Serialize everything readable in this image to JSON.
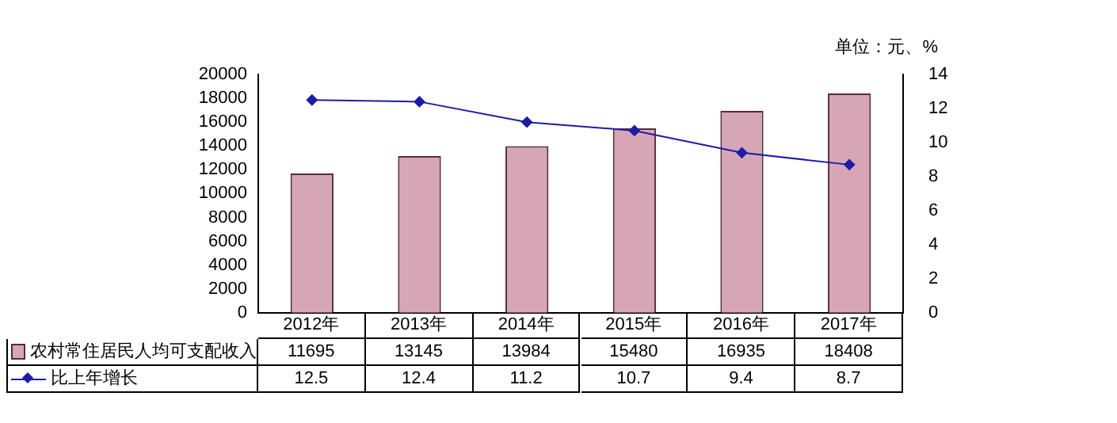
{
  "chart_data": {
    "type": "bar",
    "categories": [
      "2012年",
      "2013年",
      "2014年",
      "2015年",
      "2016年",
      "2017年"
    ],
    "series": [
      {
        "name": "农村常住居民人均可支配收入",
        "color": "#d7a6b6",
        "values": [
          11695,
          13145,
          13984,
          15480,
          16935,
          18408
        ]
      },
      {
        "name": "比上年增长",
        "type": "line",
        "axis": "y2",
        "color": "#1c1ca8",
        "values": [
          12.5,
          12.4,
          11.2,
          10.7,
          9.4,
          8.7
        ]
      }
    ],
    "ylim": [
      0,
      20000
    ],
    "yticks": [
      0,
      2000,
      4000,
      6000,
      8000,
      10000,
      12000,
      14000,
      16000,
      18000,
      20000
    ],
    "y2lim": [
      0,
      14
    ],
    "y2ticks": [
      0,
      2,
      4,
      6,
      8,
      10,
      12,
      14
    ],
    "annotations": [
      "单位：元、%"
    ],
    "data_labels": true,
    "legend": "bottom",
    "marker": "diamond",
    "grid": false
  }
}
